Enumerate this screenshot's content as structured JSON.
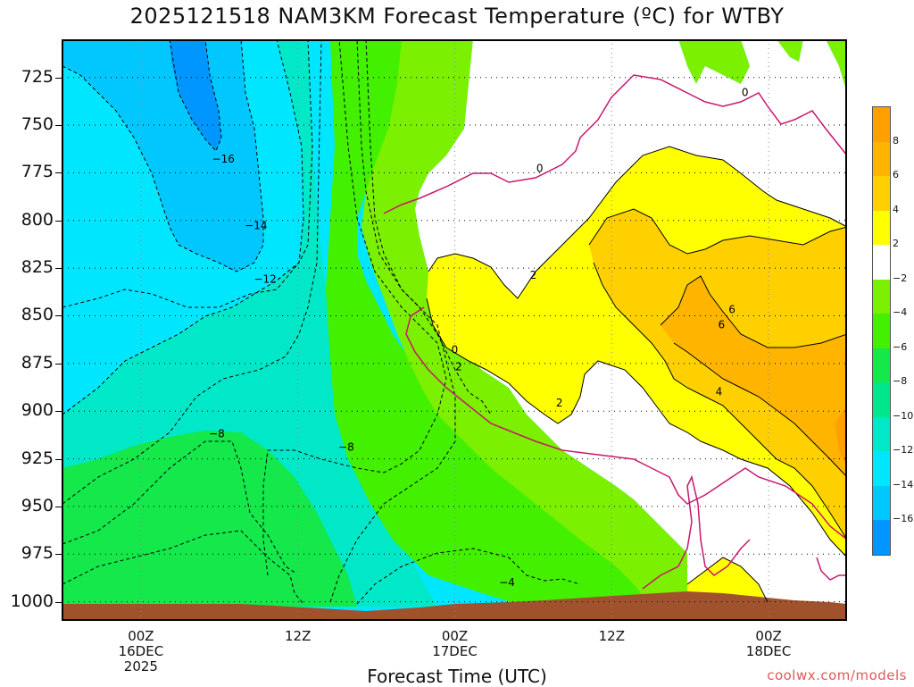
{
  "title": "2025121518 NAM3KM Forecast Temperature (ºC) for WTBY",
  "credit": "coolwx.com/models",
  "chart_data": {
    "type": "contour",
    "title": "2025121518 NAM3KM Forecast Temperature (ºC) for WTBY",
    "xlabel": "Forecast Time (UTC)",
    "ylabel": "",
    "y_ticks": [
      725,
      750,
      775,
      800,
      825,
      850,
      875,
      900,
      925,
      950,
      975,
      1000
    ],
    "ylim": [
      1010,
      705
    ],
    "x_ticks": [
      {
        "hour": 6,
        "label": "00Z",
        "sub1": "16DEC",
        "sub2": "2025"
      },
      {
        "hour": 18,
        "label": "12Z",
        "sub1": "",
        "sub2": ""
      },
      {
        "hour": 30,
        "label": "00Z",
        "sub1": "17DEC",
        "sub2": ""
      },
      {
        "hour": 42,
        "label": "12Z",
        "sub1": "",
        "sub2": ""
      },
      {
        "hour": 54,
        "label": "00Z",
        "sub1": "18DEC",
        "sub2": ""
      }
    ],
    "xlim": [
      0,
      60
    ],
    "contour_interval": 2,
    "contour_labels": [
      {
        "value": "-16",
        "hour": 12.3,
        "p": 768
      },
      {
        "value": "-14",
        "hour": 14.8,
        "p": 803
      },
      {
        "value": "-12",
        "hour": 15.5,
        "p": 831
      },
      {
        "value": "-8",
        "hour": 11.8,
        "p": 912
      },
      {
        "value": "-8",
        "hour": 21.7,
        "p": 919
      },
      {
        "value": "-4",
        "hour": 34.0,
        "p": 990
      },
      {
        "value": "0",
        "hour": 36.5,
        "p": 773
      },
      {
        "value": "0",
        "hour": 52.2,
        "p": 733
      },
      {
        "value": "0",
        "hour": 30.0,
        "p": 868
      },
      {
        "value": "2",
        "hour": 36.0,
        "p": 829
      },
      {
        "value": "2",
        "hour": 30.3,
        "p": 877
      },
      {
        "value": "2",
        "hour": 38.0,
        "p": 896
      },
      {
        "value": "6",
        "hour": 51.2,
        "p": 847
      },
      {
        "value": "6",
        "hour": 50.4,
        "p": 855
      },
      {
        "value": "4",
        "hour": 50.2,
        "p": 890
      }
    ],
    "legend": {
      "labels": [
        "8",
        "6",
        "4",
        "2",
        "−2",
        "−4",
        "−6",
        "−8",
        "−10",
        "−12",
        "−14",
        "−16"
      ],
      "colors": [
        "#ffa000",
        "#ffb400",
        "#ffd000",
        "#ffff00",
        "#ffffff",
        "#7bf000",
        "#42f000",
        "#14e84a",
        "#00e68a",
        "#00e8c8",
        "#00e6ff",
        "#00c8ff",
        "#0096ff"
      ]
    },
    "grid": true,
    "legend_position": "right"
  }
}
